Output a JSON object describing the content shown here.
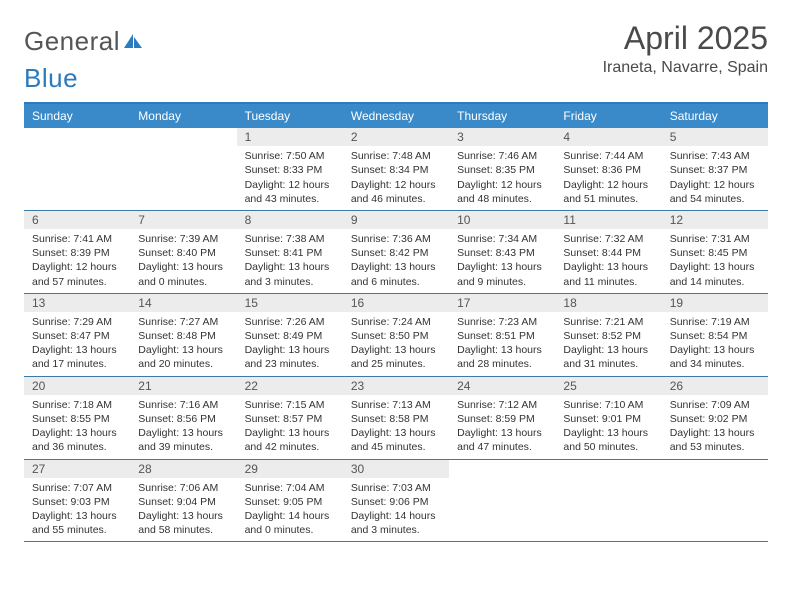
{
  "logo": {
    "word1": "General",
    "word2": "Blue"
  },
  "title": "April 2025",
  "subtitle": "Iraneta, Navarre, Spain",
  "colors": {
    "header_bar": "#3a8ac9",
    "top_rule": "#2b7bbf",
    "row_rule": "#3a7aa8",
    "daynum_bg": "#ececec",
    "text": "#333333"
  },
  "weekdays": [
    "Sunday",
    "Monday",
    "Tuesday",
    "Wednesday",
    "Thursday",
    "Friday",
    "Saturday"
  ],
  "weeks": [
    [
      null,
      null,
      {
        "n": "1",
        "sr": "7:50 AM",
        "ss": "8:33 PM",
        "dl": "12 hours and 43 minutes."
      },
      {
        "n": "2",
        "sr": "7:48 AM",
        "ss": "8:34 PM",
        "dl": "12 hours and 46 minutes."
      },
      {
        "n": "3",
        "sr": "7:46 AM",
        "ss": "8:35 PM",
        "dl": "12 hours and 48 minutes."
      },
      {
        "n": "4",
        "sr": "7:44 AM",
        "ss": "8:36 PM",
        "dl": "12 hours and 51 minutes."
      },
      {
        "n": "5",
        "sr": "7:43 AM",
        "ss": "8:37 PM",
        "dl": "12 hours and 54 minutes."
      }
    ],
    [
      {
        "n": "6",
        "sr": "7:41 AM",
        "ss": "8:39 PM",
        "dl": "12 hours and 57 minutes."
      },
      {
        "n": "7",
        "sr": "7:39 AM",
        "ss": "8:40 PM",
        "dl": "13 hours and 0 minutes."
      },
      {
        "n": "8",
        "sr": "7:38 AM",
        "ss": "8:41 PM",
        "dl": "13 hours and 3 minutes."
      },
      {
        "n": "9",
        "sr": "7:36 AM",
        "ss": "8:42 PM",
        "dl": "13 hours and 6 minutes."
      },
      {
        "n": "10",
        "sr": "7:34 AM",
        "ss": "8:43 PM",
        "dl": "13 hours and 9 minutes."
      },
      {
        "n": "11",
        "sr": "7:32 AM",
        "ss": "8:44 PM",
        "dl": "13 hours and 11 minutes."
      },
      {
        "n": "12",
        "sr": "7:31 AM",
        "ss": "8:45 PM",
        "dl": "13 hours and 14 minutes."
      }
    ],
    [
      {
        "n": "13",
        "sr": "7:29 AM",
        "ss": "8:47 PM",
        "dl": "13 hours and 17 minutes."
      },
      {
        "n": "14",
        "sr": "7:27 AM",
        "ss": "8:48 PM",
        "dl": "13 hours and 20 minutes."
      },
      {
        "n": "15",
        "sr": "7:26 AM",
        "ss": "8:49 PM",
        "dl": "13 hours and 23 minutes."
      },
      {
        "n": "16",
        "sr": "7:24 AM",
        "ss": "8:50 PM",
        "dl": "13 hours and 25 minutes."
      },
      {
        "n": "17",
        "sr": "7:23 AM",
        "ss": "8:51 PM",
        "dl": "13 hours and 28 minutes."
      },
      {
        "n": "18",
        "sr": "7:21 AM",
        "ss": "8:52 PM",
        "dl": "13 hours and 31 minutes."
      },
      {
        "n": "19",
        "sr": "7:19 AM",
        "ss": "8:54 PM",
        "dl": "13 hours and 34 minutes."
      }
    ],
    [
      {
        "n": "20",
        "sr": "7:18 AM",
        "ss": "8:55 PM",
        "dl": "13 hours and 36 minutes."
      },
      {
        "n": "21",
        "sr": "7:16 AM",
        "ss": "8:56 PM",
        "dl": "13 hours and 39 minutes."
      },
      {
        "n": "22",
        "sr": "7:15 AM",
        "ss": "8:57 PM",
        "dl": "13 hours and 42 minutes."
      },
      {
        "n": "23",
        "sr": "7:13 AM",
        "ss": "8:58 PM",
        "dl": "13 hours and 45 minutes."
      },
      {
        "n": "24",
        "sr": "7:12 AM",
        "ss": "8:59 PM",
        "dl": "13 hours and 47 minutes."
      },
      {
        "n": "25",
        "sr": "7:10 AM",
        "ss": "9:01 PM",
        "dl": "13 hours and 50 minutes."
      },
      {
        "n": "26",
        "sr": "7:09 AM",
        "ss": "9:02 PM",
        "dl": "13 hours and 53 minutes."
      }
    ],
    [
      {
        "n": "27",
        "sr": "7:07 AM",
        "ss": "9:03 PM",
        "dl": "13 hours and 55 minutes."
      },
      {
        "n": "28",
        "sr": "7:06 AM",
        "ss": "9:04 PM",
        "dl": "13 hours and 58 minutes."
      },
      {
        "n": "29",
        "sr": "7:04 AM",
        "ss": "9:05 PM",
        "dl": "14 hours and 0 minutes."
      },
      {
        "n": "30",
        "sr": "7:03 AM",
        "ss": "9:06 PM",
        "dl": "14 hours and 3 minutes."
      },
      null,
      null,
      null
    ]
  ],
  "labels": {
    "sunrise": "Sunrise:",
    "sunset": "Sunset:",
    "daylight": "Daylight:"
  }
}
